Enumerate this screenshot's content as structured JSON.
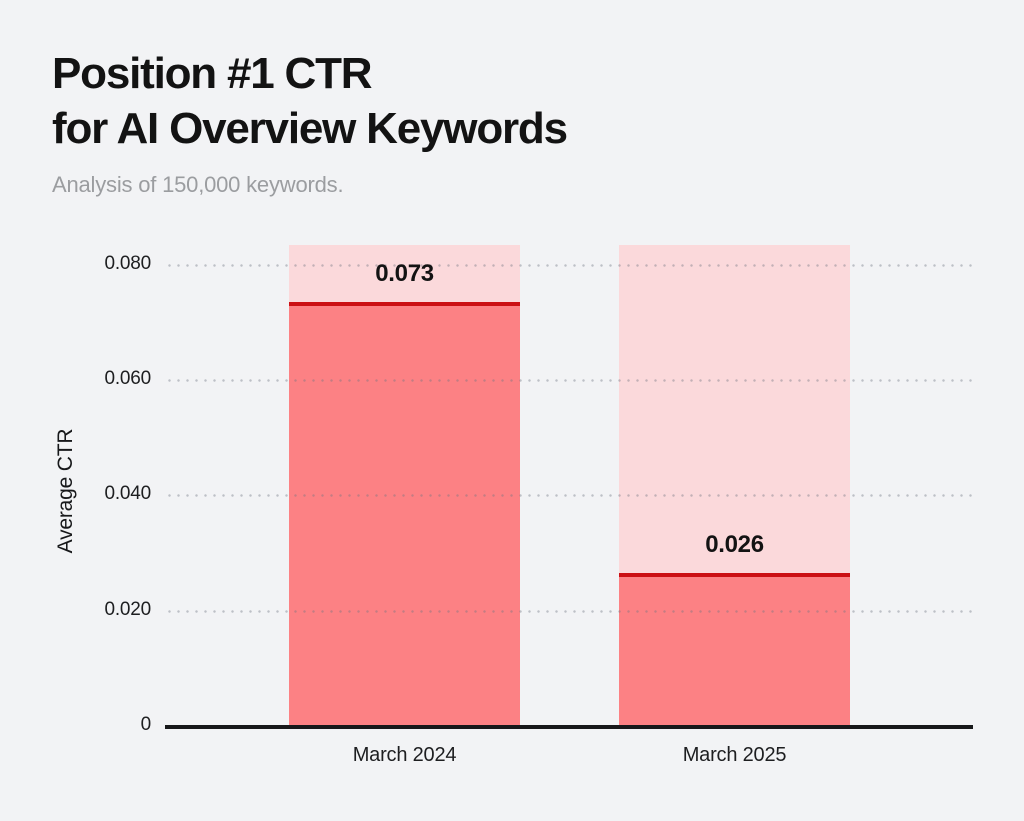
{
  "header": {
    "title": "Position #1 CTR\nfor AI Overview Keywords",
    "subtitle": "Analysis of 150,000 keywords."
  },
  "chart_data": {
    "type": "bar",
    "title": "Position #1 CTR for AI Overview Keywords",
    "subtitle": "Analysis of 150,000 keywords.",
    "categories": [
      "March 2024",
      "March 2025"
    ],
    "values": [
      0.073,
      0.026
    ],
    "value_labels": [
      "0.073",
      "0.026"
    ],
    "xlabel": "",
    "ylabel": "Average CTR",
    "ylim": [
      0,
      0.0836
    ],
    "yticks": [
      0,
      0.02,
      0.04,
      0.06,
      0.08
    ],
    "ytick_labels": [
      "0",
      "0.020",
      "0.040",
      "0.060",
      "0.080"
    ],
    "grid": "horizontal-dotted",
    "legend": "none",
    "colors": {
      "page_background": "#f2f3f5",
      "bar_fill": "#fc8184",
      "bar_background": "#fbd9db",
      "bar_top_line": "#cb1014",
      "axis_line": "#17181a",
      "gridline": "#d3d5d9",
      "title_text": "#131313",
      "subtitle_text": "#9b9da0",
      "tick_text": "#1d1e20",
      "value_text": "#131313"
    }
  }
}
